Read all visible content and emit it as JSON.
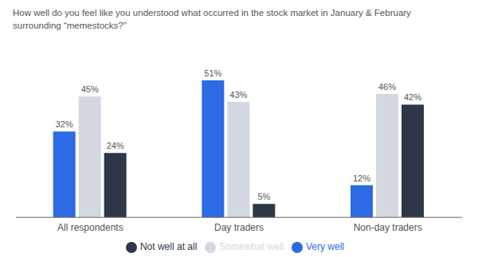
{
  "chart_data": {
    "type": "bar",
    "title": "How well do you feel like you understood what occurred in the stock market in January & February",
    "subtitle": "surrounding “memestocks?”",
    "categories": [
      "All respondents",
      "Day traders",
      "Non-day traders"
    ],
    "series": [
      {
        "name": "Very well",
        "color": "#2d6be4",
        "values": [
          32,
          51,
          12
        ],
        "value_labels": [
          "32%",
          "51%",
          "12%"
        ]
      },
      {
        "name": "Somewhat well",
        "color": "#d4d8e0",
        "values": [
          45,
          43,
          46
        ],
        "value_labels": [
          "45%",
          "43%",
          "46%"
        ]
      },
      {
        "name": "Not well at all",
        "color": "#2e3748",
        "values": [
          24,
          5,
          42
        ],
        "value_labels": [
          "24%",
          "5%",
          "42%"
        ]
      }
    ],
    "ylim": [
      0,
      62
    ],
    "data_labels": true,
    "tick_labels": "x",
    "legend": "bottom",
    "grid": false
  }
}
